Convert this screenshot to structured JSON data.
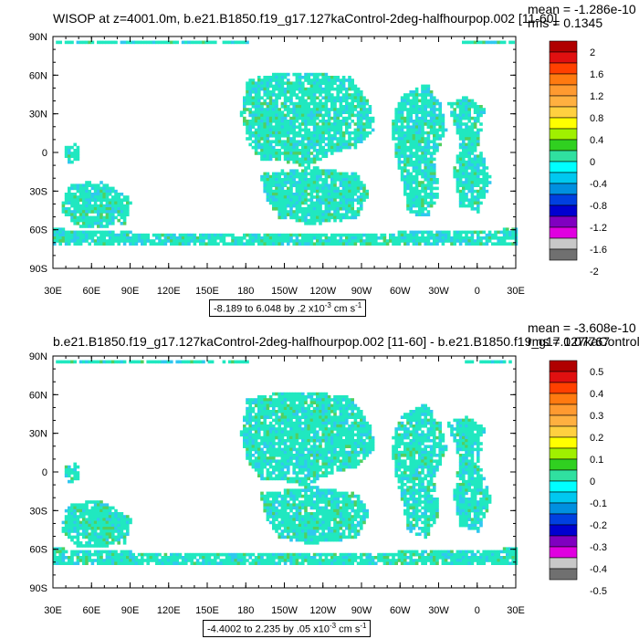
{
  "chart_data": [
    {
      "type": "heatmap",
      "title": "WISOP at z=4001.0m, b.e21.B1850.f19_g17.127kaControl-2deg-halfhourpop.002 [11-60]",
      "mean_text": "mean = -1.286e-10",
      "rms_text": "rms = 0.1345",
      "x_ticks": [
        "30E",
        "60E",
        "90E",
        "120E",
        "150E",
        "180",
        "150W",
        "120W",
        "90W",
        "60W",
        "30W",
        "0",
        "30E"
      ],
      "y_ticks": [
        "90N",
        "60N",
        "30N",
        "0",
        "30S",
        "60S",
        "90S"
      ],
      "colorbar_labels": [
        "2",
        "1.6",
        "1.2",
        "0.8",
        "0.4",
        "0",
        "-0.4",
        "-0.8",
        "-1.2",
        "-1.6",
        "-2"
      ],
      "info": "-8.189 to 6.048 by .2 x10",
      "info_exp": "-3",
      "info_units": " cm s",
      "info_units_exp": "-1"
    },
    {
      "type": "heatmap",
      "title": "b.e21.B1850.f19_g17.127kaControl-2deg-halfhourpop.002 [11-60] - b.e21.B1850.f19_g17.127kaControl-",
      "mean_text": "mean = -3.608e-10",
      "rms_text": "rms = 0.07767",
      "x_ticks": [
        "30E",
        "60E",
        "90E",
        "120E",
        "150E",
        "180",
        "150W",
        "120W",
        "90W",
        "60W",
        "30W",
        "0",
        "30E"
      ],
      "y_ticks": [
        "90N",
        "60N",
        "30N",
        "0",
        "30S",
        "60S",
        "90S"
      ],
      "colorbar_labels": [
        "0.5",
        "0.4",
        "0.3",
        "0.2",
        "0.1",
        "0",
        "-0.1",
        "-0.2",
        "-0.3",
        "-0.4",
        "-0.5"
      ],
      "info": "-4.4002 to 2.235 by .05 x10",
      "info_exp": "-3",
      "info_units": " cm s",
      "info_units_exp": "-1"
    }
  ],
  "colors": {
    "colorbar": [
      "#b00000",
      "#e01010",
      "#ff4000",
      "#ff7a10",
      "#ff9a30",
      "#ffb040",
      "#ffd040",
      "#ffff00",
      "#a0f000",
      "#30d020",
      "#30e0a0",
      "#00ffff",
      "#00c8f0",
      "#0090e0",
      "#0040e0",
      "#0000d0",
      "#8000c0",
      "#e000e0",
      "#c8c8c8",
      "#707070"
    ],
    "field_main": "#20e8c0",
    "field_speckle": "#30c8f0",
    "field_green": "#50d060"
  }
}
